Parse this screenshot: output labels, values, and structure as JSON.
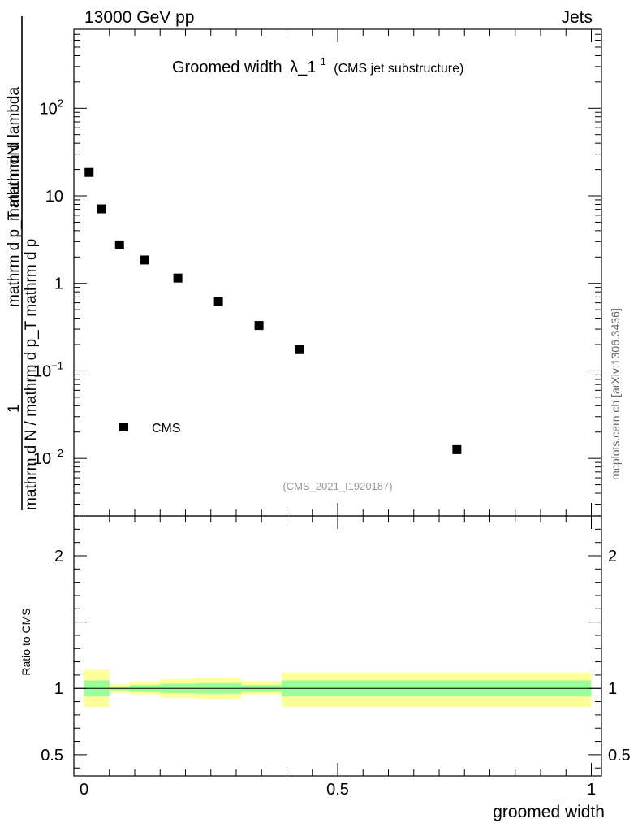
{
  "header": {
    "left": "13000 GeV pp",
    "right": "Jets"
  },
  "side_label": "mcplots.cern.ch [arXiv:1306.3436]",
  "main_panel": {
    "title_main": "Groomed width",
    "title_symbol": "λ_1",
    "title_sup": "1",
    "title_sub": "(CMS jet substructure)",
    "y_label_numerator": "mathrm dN",
    "y_label_line1": "mathrm d p_T mathrm d lambda",
    "y_label_line2": "1",
    "y_label_line3": "mathrm d N / mathrm d p_T mathrm d p",
    "analysis_tag": "(CMS_2021_I1920187)",
    "legend_label": "CMS",
    "y_ticks": [
      {
        "v": 100,
        "label": "10",
        "sup": "2"
      },
      {
        "v": 10,
        "label": "10",
        "sup": ""
      },
      {
        "v": 1,
        "label": "1",
        "sup": ""
      },
      {
        "v": 0.1,
        "label": "10",
        "sup": "−1"
      },
      {
        "v": 0.01,
        "label": "10",
        "sup": "−2"
      }
    ]
  },
  "ratio_panel": {
    "y_label": "Ratio to CMS",
    "y_ticks": [
      {
        "v": 0.5,
        "label": "0.5"
      },
      {
        "v": 1,
        "label": "1"
      },
      {
        "v": 2,
        "label": "2"
      }
    ]
  },
  "x_axis": {
    "label": "groomed width",
    "ticks": [
      {
        "v": 0,
        "label": "0"
      },
      {
        "v": 0.5,
        "label": "0.5"
      },
      {
        "v": 1,
        "label": "1"
      }
    ]
  },
  "colors": {
    "stat_band": "#99ff99",
    "total_band": "#ffff99",
    "marker": "#000000"
  },
  "chart_data": {
    "type": "scatter",
    "x_range": [
      -0.02,
      1.02
    ],
    "y_range": [
      0.0022,
      800
    ],
    "y_scale": "log",
    "ratio_y_range": [
      0.34,
      2.3
    ],
    "series": [
      {
        "name": "CMS",
        "x": [
          0.01,
          0.035,
          0.07,
          0.12,
          0.185,
          0.265,
          0.345,
          0.425,
          0.735
        ],
        "y": [
          18.5,
          7.1,
          2.75,
          1.85,
          1.15,
          0.62,
          0.33,
          0.175,
          0.0126
        ]
      }
    ],
    "ratio_bands": [
      {
        "x0": 0.0,
        "x1": 0.05,
        "stat_lo": 0.94,
        "stat_hi": 1.06,
        "tot_lo": 0.86,
        "tot_hi": 1.14
      },
      {
        "x0": 0.05,
        "x1": 0.09,
        "stat_lo": 0.985,
        "stat_hi": 1.015,
        "tot_lo": 0.965,
        "tot_hi": 1.03
      },
      {
        "x0": 0.09,
        "x1": 0.15,
        "stat_lo": 0.975,
        "stat_hi": 1.025,
        "tot_lo": 0.955,
        "tot_hi": 1.045
      },
      {
        "x0": 0.15,
        "x1": 0.22,
        "stat_lo": 0.965,
        "stat_hi": 1.035,
        "tot_lo": 0.93,
        "tot_hi": 1.07
      },
      {
        "x0": 0.22,
        "x1": 0.31,
        "stat_lo": 0.96,
        "stat_hi": 1.04,
        "tot_lo": 0.92,
        "tot_hi": 1.08
      },
      {
        "x0": 0.31,
        "x1": 0.39,
        "stat_lo": 0.975,
        "stat_hi": 1.025,
        "tot_lo": 0.955,
        "tot_hi": 1.055
      },
      {
        "x0": 0.39,
        "x1": 1.0,
        "stat_lo": 0.94,
        "stat_hi": 1.06,
        "tot_lo": 0.86,
        "tot_hi": 1.12
      }
    ]
  }
}
